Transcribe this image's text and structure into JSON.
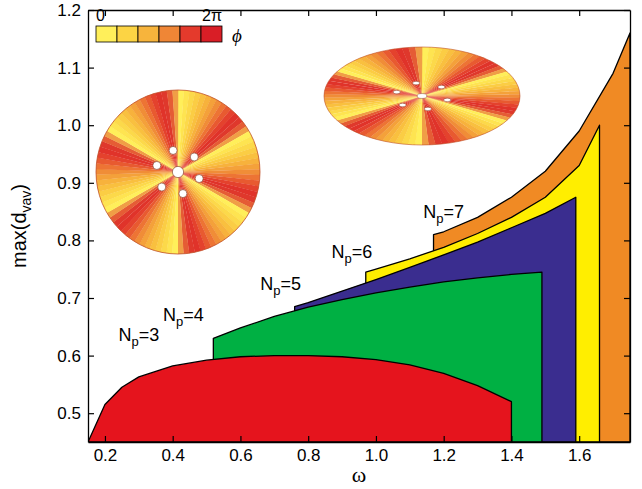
{
  "chart_data": {
    "type": "area",
    "x_label": "ω",
    "y_label": "max(dvav)",
    "xlim": [
      0.15,
      1.75
    ],
    "ylim": [
      0.45,
      1.2
    ],
    "xticks": [
      0.2,
      0.4,
      0.6,
      0.8,
      {
        "value": 1,
        "label": "1.0"
      },
      1.2,
      1.4,
      1.6
    ],
    "yticks": [
      0.5,
      0.6,
      0.7,
      0.8,
      0.9,
      {
        "value": 1,
        "label": "1.0"
      },
      1.1,
      1.2
    ],
    "grid": false,
    "series": [
      {
        "name": "Np=3",
        "color": "#e5141d",
        "x": [
          0.15,
          0.2,
          0.25,
          0.3,
          0.4,
          0.5,
          0.6,
          0.7,
          0.8,
          0.9,
          1.0,
          1.1,
          1.2,
          1.3,
          1.4
        ],
        "values": [
          0.45,
          0.515,
          0.545,
          0.563,
          0.582,
          0.592,
          0.598,
          0.6,
          0.6,
          0.598,
          0.593,
          0.584,
          0.569,
          0.548,
          0.52
        ]
      },
      {
        "name": "Np=4",
        "color": "#00b043",
        "x": [
          0.52,
          0.6,
          0.7,
          0.8,
          0.9,
          1.0,
          1.1,
          1.2,
          1.3,
          1.4,
          1.49
        ],
        "values": [
          0.63,
          0.648,
          0.668,
          0.684,
          0.697,
          0.709,
          0.719,
          0.728,
          0.735,
          0.741,
          0.745
        ]
      },
      {
        "name": "Np=5",
        "color": "#3a2d8f",
        "x": [
          0.76,
          0.8,
          0.9,
          1.0,
          1.1,
          1.2,
          1.3,
          1.4,
          1.5,
          1.59
        ],
        "values": [
          0.685,
          0.692,
          0.712,
          0.732,
          0.753,
          0.775,
          0.797,
          0.822,
          0.847,
          0.875
        ]
      },
      {
        "name": "Np=6",
        "color": "#ffee00",
        "x": [
          0.97,
          1.0,
          1.1,
          1.2,
          1.3,
          1.4,
          1.5,
          1.6,
          1.66
        ],
        "values": [
          0.745,
          0.75,
          0.768,
          0.788,
          0.812,
          0.84,
          0.875,
          0.93,
          1.0
        ]
      },
      {
        "name": "Np=7",
        "color": "#f08a24",
        "x": [
          1.17,
          1.2,
          1.3,
          1.4,
          1.5,
          1.6,
          1.7,
          1.75
        ],
        "values": [
          0.81,
          0.815,
          0.84,
          0.875,
          0.92,
          0.99,
          1.09,
          1.16
        ]
      }
    ],
    "colorbar": {
      "range": [
        0,
        6.2832
      ],
      "ticks": [
        {
          "value": 0,
          "label": "0"
        },
        {
          "value": 6.2832,
          "label": "2π"
        }
      ],
      "label": "ϕ",
      "colors": [
        "#ffef5a",
        "#fcd444",
        "#f7b43c",
        "#ef8636",
        "#e43a2c",
        "#d91e26"
      ]
    }
  }
}
